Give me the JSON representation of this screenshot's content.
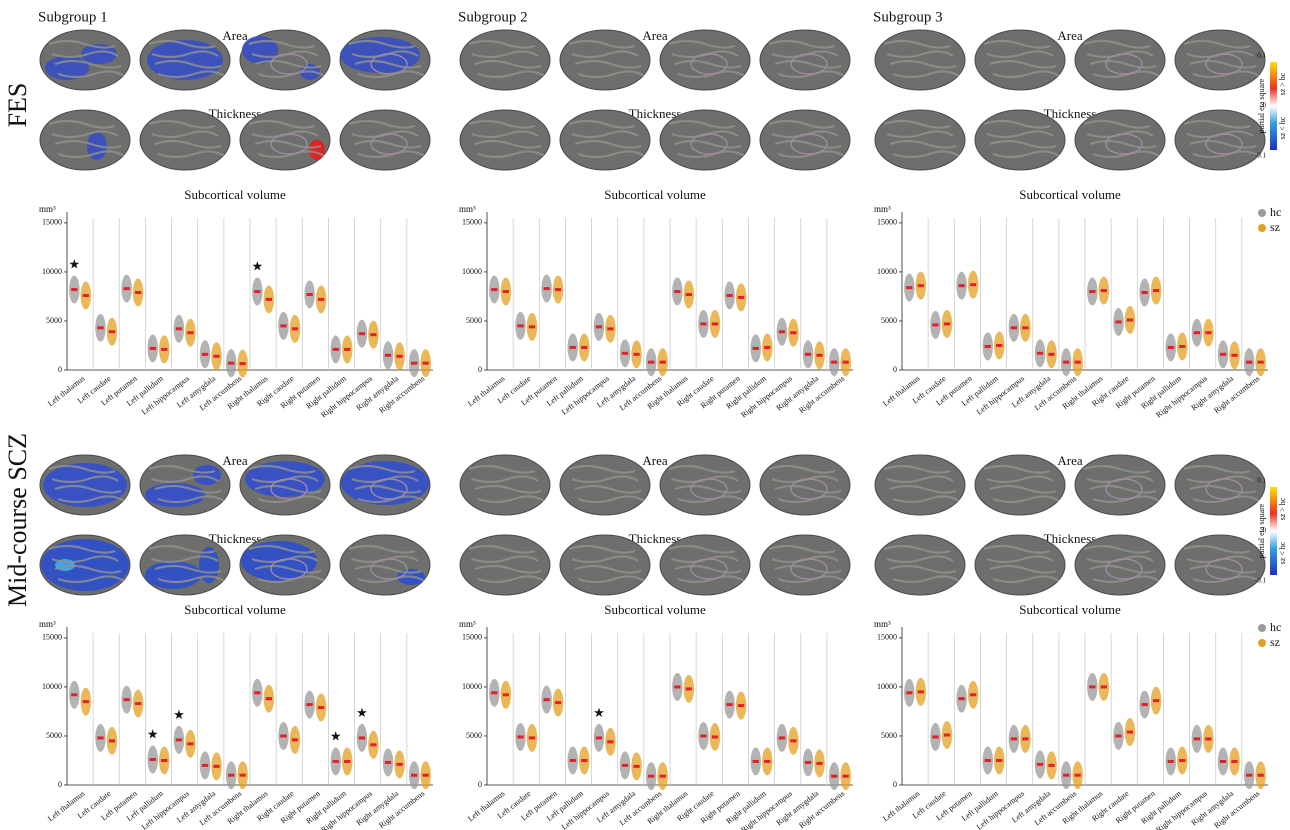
{
  "figure": {
    "rows": [
      "FES",
      "Mid-course SCZ"
    ],
    "columns": [
      "Subgroup 1",
      "Subgroup 2",
      "Subgroup 3"
    ],
    "brain_labels": [
      "Area",
      "Thickness"
    ],
    "colorbar": {
      "label": "partial eta square",
      "ticks": [
        0.1,
        0,
        -0.1
      ],
      "upper": "sz > hc",
      "lower": "sz < hc"
    }
  },
  "chart_data": [
    {
      "type": "strip",
      "title": "Subcortical volume",
      "ylabel": "mm³",
      "categories": [
        "Left thalamus",
        "Left caudate",
        "Left putamen",
        "Left pallidum",
        "Left hippocampus",
        "Left amygdala",
        "Left accumbens",
        "Right thalamus",
        "Right caudate",
        "Right putamen",
        "Right pallidum",
        "Right hippocampus",
        "Right amygdala",
        "Right accumbens"
      ],
      "ylim": [
        0,
        15500
      ],
      "yticks": [
        0,
        5000,
        10000,
        15000
      ],
      "mean_color": "#e0202a",
      "series": [
        {
          "name": "hc",
          "color": "#9a9a9a",
          "values": [
            8200,
            4300,
            8300,
            2200,
            4200,
            1600,
            700,
            8000,
            4500,
            7700,
            2100,
            3700,
            1500,
            700
          ]
        },
        {
          "name": "sz",
          "color": "#e3a020",
          "values": [
            7600,
            3900,
            7900,
            2100,
            3800,
            1400,
            650,
            7200,
            4200,
            7200,
            2100,
            3600,
            1400,
            700
          ]
        }
      ],
      "stars": [
        "★",
        null,
        null,
        null,
        null,
        null,
        null,
        "★",
        null,
        null,
        null,
        null,
        null,
        null
      ]
    },
    {
      "type": "strip",
      "title": "Subcortical volume",
      "ylabel": "mm³",
      "categories": [
        "Left thalamus",
        "Left caudate",
        "Left putamen",
        "Left pallidum",
        "Left hippocampus",
        "Left amygdala",
        "Left accumbens",
        "Right thalamus",
        "Right caudate",
        "Right putamen",
        "Right pallidum",
        "Right hippocampus",
        "Right amygdala",
        "Right accumbens"
      ],
      "ylim": [
        0,
        15500
      ],
      "yticks": [
        0,
        5000,
        10000,
        15000
      ],
      "mean_color": "#e0202a",
      "series": [
        {
          "name": "hc",
          "color": "#9a9a9a",
          "values": [
            8200,
            4500,
            8300,
            2300,
            4400,
            1700,
            800,
            8000,
            4700,
            7600,
            2200,
            3900,
            1600,
            800
          ]
        },
        {
          "name": "sz",
          "color": "#e3a020",
          "values": [
            8000,
            4400,
            8200,
            2300,
            4200,
            1600,
            800,
            7700,
            4700,
            7400,
            2300,
            3800,
            1500,
            800
          ]
        }
      ]
    },
    {
      "type": "strip",
      "title": "Subcortical volume",
      "ylabel": "mm³",
      "categories": [
        "Left thalamus",
        "Left caudate",
        "Left putamen",
        "Left pallidum",
        "Left hippocampus",
        "Left amygdala",
        "Left accumbens",
        "Right thalamus",
        "Right caudate",
        "Right putamen",
        "Right pallidum",
        "Right hippocampus",
        "Right amygdala",
        "Right accumbens"
      ],
      "ylim": [
        0,
        15500
      ],
      "yticks": [
        0,
        5000,
        10000,
        15000
      ],
      "mean_color": "#e0202a",
      "legend": "upper right",
      "series": [
        {
          "name": "hc",
          "color": "#9a9a9a",
          "values": [
            8400,
            4600,
            8600,
            2400,
            4300,
            1700,
            800,
            8000,
            4900,
            7900,
            2300,
            3800,
            1600,
            800
          ]
        },
        {
          "name": "sz",
          "color": "#e3a020",
          "values": [
            8600,
            4700,
            8700,
            2500,
            4300,
            1600,
            800,
            8100,
            5100,
            8100,
            2400,
            3800,
            1500,
            800
          ]
        }
      ]
    },
    {
      "type": "strip",
      "title": "Subcortical volume",
      "ylabel": "mm³",
      "categories": [
        "Left thalamus",
        "Left caudate",
        "Left putamen",
        "Left pallidum",
        "Left hippocampus",
        "Left amygdala",
        "Left accumbens",
        "Right thalamus",
        "Right caudate",
        "Right putamen",
        "Right pallidum",
        "Right hippocampus",
        "Right amygdala",
        "Right accumbens"
      ],
      "ylim": [
        0,
        15500
      ],
      "yticks": [
        0,
        5000,
        10000,
        15000
      ],
      "mean_color": "#e0202a",
      "series": [
        {
          "name": "hc",
          "color": "#9a9a9a",
          "values": [
            9200,
            4800,
            8700,
            2600,
            4600,
            2000,
            1000,
            9400,
            5000,
            8200,
            2400,
            4800,
            2300,
            1000
          ]
        },
        {
          "name": "sz",
          "color": "#e3a020",
          "values": [
            8500,
            4500,
            8300,
            2500,
            4200,
            1900,
            1000,
            8800,
            4600,
            7900,
            2400,
            4100,
            2100,
            1000
          ]
        }
      ],
      "stars": [
        null,
        null,
        null,
        "★",
        "★",
        null,
        null,
        null,
        null,
        null,
        "★",
        "★",
        null,
        null
      ]
    },
    {
      "type": "strip",
      "title": "Subcortical volume",
      "ylabel": "mm³",
      "categories": [
        "Left thalamus",
        "Left caudate",
        "Left putamen",
        "Left pallidum",
        "Left hippocampus",
        "Left amygdala",
        "Left accumbens",
        "Right thalamus",
        "Right caudate",
        "Right putamen",
        "Right pallidum",
        "Right hippocampus",
        "Right amygdala",
        "Right accumbens"
      ],
      "ylim": [
        0,
        15500
      ],
      "yticks": [
        0,
        5000,
        10000,
        15000
      ],
      "mean_color": "#e0202a",
      "series": [
        {
          "name": "hc",
          "color": "#9a9a9a",
          "values": [
            9400,
            4900,
            8700,
            2500,
            4800,
            2000,
            900,
            10000,
            5000,
            8200,
            2400,
            4800,
            2300,
            900
          ]
        },
        {
          "name": "sz",
          "color": "#e3a020",
          "values": [
            9200,
            4800,
            8400,
            2500,
            4400,
            1900,
            900,
            9800,
            4900,
            8100,
            2400,
            4500,
            2200,
            900
          ]
        }
      ],
      "stars": [
        null,
        null,
        null,
        null,
        "★",
        null,
        null,
        null,
        null,
        null,
        null,
        null,
        null,
        null
      ]
    },
    {
      "type": "strip",
      "title": "Subcortical volume",
      "ylabel": "mm³",
      "categories": [
        "Left thalamus",
        "Left caudate",
        "Left putamen",
        "Left pallidum",
        "Left hippocampus",
        "Left amygdala",
        "Left accumbens",
        "Right thalamus",
        "Right caudate",
        "Right putamen",
        "Right pallidum",
        "Right hippocampus",
        "Right amygdala",
        "Right accumbens"
      ],
      "ylim": [
        0,
        15500
      ],
      "yticks": [
        0,
        5000,
        10000,
        15000
      ],
      "mean_color": "#e0202a",
      "legend": "upper right",
      "series": [
        {
          "name": "hc",
          "color": "#9a9a9a",
          "values": [
            9400,
            4900,
            8800,
            2500,
            4700,
            2100,
            1000,
            10000,
            5000,
            8200,
            2400,
            4700,
            2400,
            1000
          ]
        },
        {
          "name": "sz",
          "color": "#e3a020",
          "values": [
            9500,
            5100,
            9200,
            2500,
            4700,
            2000,
            1000,
            10000,
            5400,
            8600,
            2500,
            4700,
            2400,
            1000
          ]
        }
      ]
    }
  ]
}
